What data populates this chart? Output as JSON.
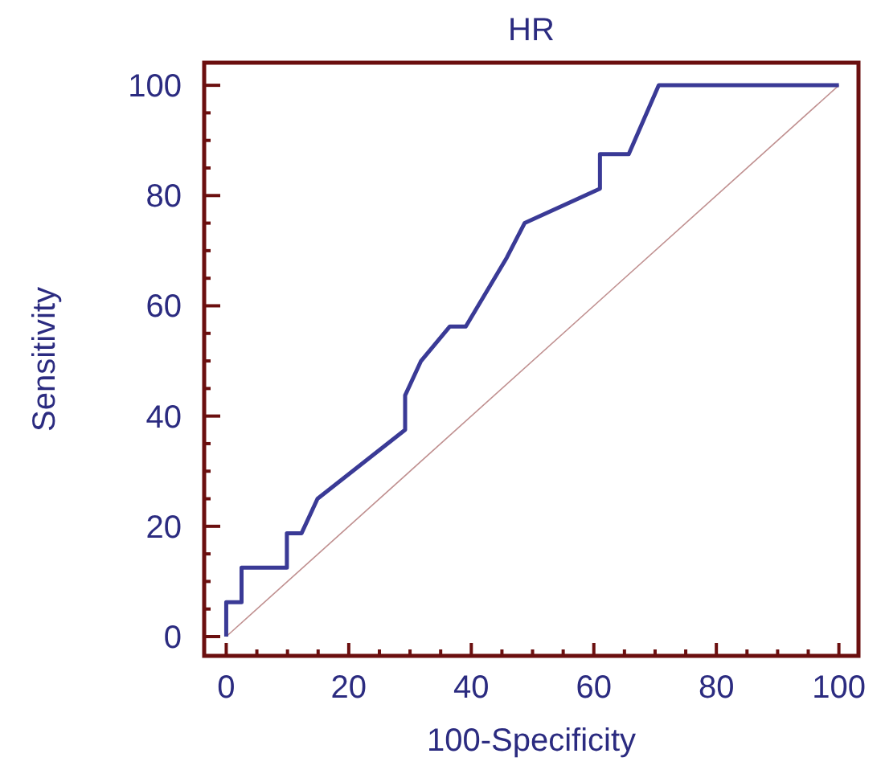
{
  "chart_data": {
    "type": "line",
    "title": "HR",
    "xlabel": "100-Specificity",
    "ylabel": "Sensitivity",
    "xlim": [
      -3.6,
      103.2
    ],
    "ylim": [
      -3.5,
      104.1
    ],
    "xticks": [
      0,
      {
        "value": 5,
        "label": null
      },
      {
        "value": 10,
        "label": null
      },
      {
        "value": 15,
        "label": null
      },
      20,
      {
        "value": 25,
        "label": null
      },
      {
        "value": 30,
        "label": null
      },
      {
        "value": 35,
        "label": null
      },
      40,
      {
        "value": 45,
        "label": null
      },
      {
        "value": 50,
        "label": null
      },
      {
        "value": 55,
        "label": null
      },
      60,
      {
        "value": 65,
        "label": null
      },
      {
        "value": 70,
        "label": null
      },
      {
        "value": 75,
        "label": null
      },
      80,
      {
        "value": 85,
        "label": null
      },
      {
        "value": 90,
        "label": null
      },
      {
        "value": 95,
        "label": null
      },
      100
    ],
    "yticks": [
      0,
      {
        "value": 5,
        "label": null
      },
      {
        "value": 10,
        "label": null
      },
      {
        "value": 15,
        "label": null
      },
      20,
      {
        "value": 25,
        "label": null
      },
      {
        "value": 30,
        "label": null
      },
      {
        "value": 35,
        "label": null
      },
      40,
      {
        "value": 45,
        "label": null
      },
      {
        "value": 50,
        "label": null
      },
      {
        "value": 55,
        "label": null
      },
      60,
      {
        "value": 65,
        "label": null
      },
      {
        "value": 70,
        "label": null
      },
      {
        "value": 75,
        "label": null
      },
      80,
      {
        "value": 85,
        "label": null
      },
      {
        "value": 90,
        "label": null
      },
      {
        "value": 95,
        "label": null
      },
      100
    ],
    "grid": false,
    "marker": "none",
    "series": [
      {
        "color": "#3a3a96",
        "x": [
          0,
          0,
          2.5,
          2.5,
          9.9,
          9.9,
          12.3,
          14.9,
          29.2,
          29.2,
          31.8,
          36.5,
          39.1,
          45.8,
          48.7,
          61,
          61,
          65.7,
          70.6,
          100
        ],
        "values": [
          0,
          6.25,
          6.25,
          12.5,
          12.5,
          18.75,
          18.75,
          25,
          37.5,
          43.75,
          50,
          56.25,
          56.25,
          68.75,
          75,
          81.25,
          87.5,
          87.5,
          100,
          100
        ]
      },
      {
        "color": "#c09090",
        "x": [
          0,
          100
        ],
        "values": [
          0,
          100
        ]
      }
    ]
  }
}
